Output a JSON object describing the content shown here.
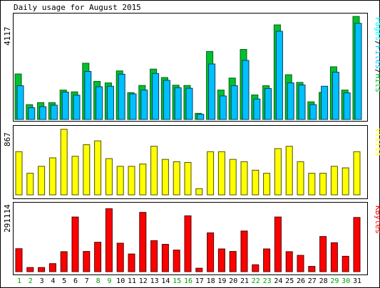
{
  "title": "Daily usage for August 2015",
  "chart_data": [
    {
      "type": "bar",
      "panel": "hits-files-pages",
      "max_label": "4117",
      "ylim": [
        0,
        4117
      ],
      "legend": [
        {
          "text": "Pages",
          "color": "#00ffff"
        },
        {
          "text": "/",
          "color": "#000000"
        },
        {
          "text": "Files",
          "color": "#00c0ff"
        },
        {
          "text": "/",
          "color": "#000000"
        },
        {
          "text": "Hits",
          "color": "#00c030"
        }
      ],
      "categories": [
        "1",
        "2",
        "3",
        "4",
        "5",
        "6",
        "7",
        "8",
        "9",
        "10",
        "11",
        "12",
        "13",
        "14",
        "15",
        "16",
        "17",
        "18",
        "19",
        "20",
        "21",
        "22",
        "23",
        "24",
        "25",
        "26",
        "27",
        "28",
        "29",
        "30",
        "31"
      ],
      "series": [
        {
          "name": "Hits",
          "color": "#00c030",
          "values": [
            1780,
            580,
            660,
            660,
            1150,
            1080,
            2200,
            1490,
            1430,
            1900,
            1050,
            1330,
            1970,
            1640,
            1340,
            1330,
            240,
            2660,
            1150,
            1620,
            2740,
            960,
            1320,
            3700,
            1750,
            1450,
            690,
            1060,
            2060,
            1150,
            4030
          ]
        },
        {
          "name": "Files",
          "color": "#00c0ff",
          "values": [
            1320,
            460,
            500,
            560,
            1070,
            950,
            1880,
            1280,
            1300,
            1770,
            1000,
            1150,
            1800,
            1530,
            1240,
            1220,
            200,
            2170,
            920,
            1320,
            2310,
            800,
            1210,
            3450,
            1430,
            1350,
            580,
            1300,
            1850,
            1040,
            3760
          ]
        }
      ]
    },
    {
      "type": "bar",
      "panel": "visits",
      "max_label": "867",
      "ylim": [
        0,
        867
      ],
      "legend": [
        {
          "text": "Visits",
          "color": "#ffff00"
        }
      ],
      "series": [
        {
          "name": "Visits",
          "color": "#ffff00",
          "values": [
            560,
            280,
            370,
            480,
            850,
            500,
            650,
            700,
            470,
            370,
            370,
            400,
            630,
            460,
            430,
            420,
            80,
            560,
            560,
            460,
            430,
            320,
            280,
            600,
            630,
            430,
            280,
            280,
            370,
            350,
            560
          ]
        }
      ]
    },
    {
      "type": "bar",
      "panel": "kbytes",
      "max_label": "291114",
      "ylim": [
        0,
        291114
      ],
      "legend": [
        {
          "text": "KBytes",
          "color": "#ff0000"
        }
      ],
      "series": [
        {
          "name": "KBytes",
          "color": "#ff0000",
          "values": [
            100000,
            18000,
            18000,
            35000,
            87000,
            238000,
            88000,
            128000,
            274000,
            124000,
            77000,
            258000,
            135000,
            119000,
            94000,
            243000,
            15000,
            169000,
            99000,
            88000,
            177000,
            30000,
            99000,
            238000,
            87000,
            71000,
            23000,
            153000,
            126000,
            67000,
            236000
          ]
        }
      ]
    }
  ],
  "weekend_days": [
    "1",
    "2",
    "8",
    "9",
    "15",
    "16",
    "22",
    "23",
    "29",
    "30"
  ],
  "weekend_color": "#00a000",
  "weekday_color": "#000000"
}
